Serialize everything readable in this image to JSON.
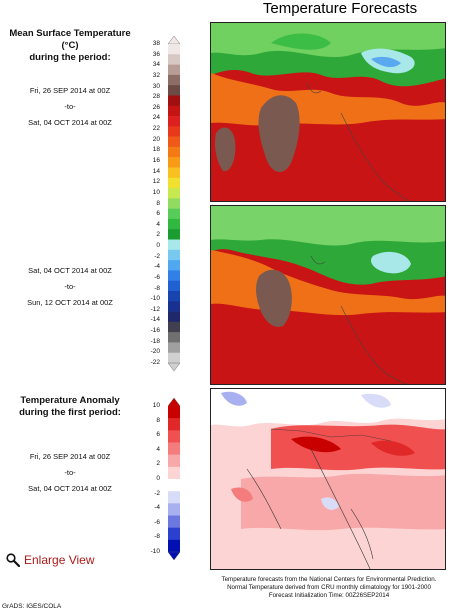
{
  "title": "Temperature Forecasts",
  "mean_block": {
    "heading_line1": "Mean Surface Temperature (°C)",
    "heading_line2": "during the period:"
  },
  "period1": {
    "from": "Fri, 26 SEP 2014 at 00Z",
    "sep": "-to-",
    "to": "Sat, 04 OCT 2014 at 00Z"
  },
  "period2": {
    "from": "Sat, 04 OCT 2014 at 00Z",
    "sep": "-to-",
    "to": "Sun, 12 OCT 2014 at 00Z"
  },
  "anomaly_block": {
    "heading_line1": "Temperature Anomaly",
    "heading_line2": "during the first period:",
    "from": "Fri, 26 SEP 2014 at 00Z",
    "sep": "-to-",
    "to": "Sat, 04 OCT 2014 at 00Z"
  },
  "temp_scale": {
    "ticks": [
      "38",
      "36",
      "34",
      "32",
      "30",
      "28",
      "26",
      "24",
      "22",
      "20",
      "18",
      "16",
      "14",
      "12",
      "10",
      "8",
      "6",
      "4",
      "2",
      "0",
      "-2",
      "-4",
      "-6",
      "-8",
      "-10",
      "-12",
      "-14",
      "-16",
      "-18",
      "-20",
      "-22"
    ],
    "colors": [
      "#f0e8e6",
      "#d8c8c4",
      "#b89d96",
      "#8d6e66",
      "#6b4b44",
      "#a01010",
      "#c41414",
      "#dc2020",
      "#e83a1a",
      "#f05a18",
      "#f47a16",
      "#f89c18",
      "#f8c020",
      "#f0e030",
      "#c8e850",
      "#90dc60",
      "#58cc58",
      "#30b840",
      "#1a9c30",
      "#a8e8e8",
      "#78c8f0",
      "#50a8f0",
      "#3080e8",
      "#2060d0",
      "#1844b0",
      "#183090",
      "#20286c",
      "#404050",
      "#707070",
      "#a0a0a0",
      "#d0d0d0"
    ]
  },
  "anom_scale": {
    "ticks": [
      "10",
      "8",
      "6",
      "4",
      "2",
      "0",
      "-2",
      "-4",
      "-6",
      "-8",
      "-10"
    ],
    "colors": [
      "#c80000",
      "#e02828",
      "#f05050",
      "#f47c7c",
      "#f8a8a8",
      "#fcd4d4",
      "#ffffff",
      "#d8dcf8",
      "#a8b0f0",
      "#6c78e0",
      "#2c40d0",
      "#0010b0"
    ]
  },
  "enlarge_label": "Enlarge View",
  "footer": [
    "Temperature forecasts from the National Centers for Environmental Prediction.",
    "Normal Temperature derived from CRU monthly climatology for 1901-2000",
    "Forecast Initialization Time: 00Z26SEP2014"
  ],
  "credit": "GrADS: IGES/COLA"
}
